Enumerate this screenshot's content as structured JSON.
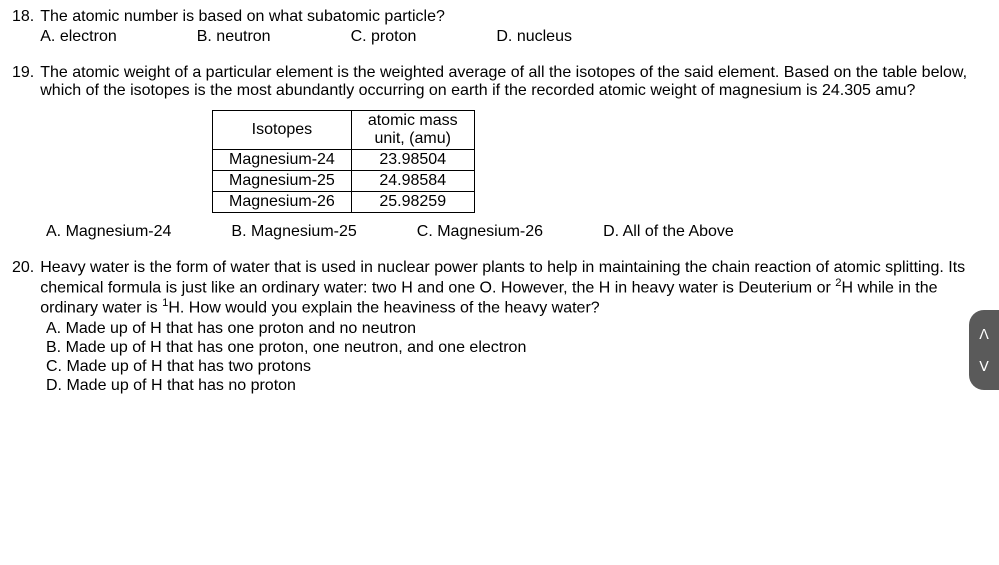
{
  "q18": {
    "number": "18.",
    "text": "The atomic number is based on what subatomic particle?",
    "opts": {
      "a": "A. electron",
      "b": "B.  neutron",
      "c": "C.  proton",
      "d": "D.  nucleus"
    }
  },
  "q19": {
    "number": "19.",
    "text": "The atomic weight of a particular element is the weighted average of all the isotopes of the said element. Based on the table below, which of the isotopes is the most abundantly occurring on earth if the recorded atomic weight of magnesium is 24.305 amu?",
    "table": {
      "h1": "Isotopes",
      "h2a": "atomic mass",
      "h2b": "unit, (amu)",
      "r1c1": "Magnesium-24",
      "r1c2": "23.98504",
      "r2c1": "Magnesium-25",
      "r2c2": "24.98584",
      "r3c1": "Magnesium-26",
      "r3c2": "25.98259"
    },
    "opts": {
      "a": "A. Magnesium-24",
      "b": "B.  Magnesium-25",
      "c": "C.  Magnesium-26",
      "d": "D.  All of the Above"
    }
  },
  "q20": {
    "number": "20.",
    "text_p1": "Heavy water is the form of water that is used in nuclear power plants to help in maintaining the chain reaction of atomic splitting. Its chemical formula is just like an ordinary water: two H and one O.  However, the H in heavy water is Deuterium or ",
    "sup2": "2",
    "text_p2": "H while in the ordinary water is ",
    "sup1": "1",
    "text_p3": "H.  How would you explain the heaviness of the heavy water?",
    "opts": {
      "a": "A.  Made up of H that has one proton and no neutron",
      "b": "B.  Made up of H that has one proton, one neutron, and one electron",
      "c": "C.  Made up of H that has two protons",
      "d": "D.  Made up of H that has no proton"
    }
  },
  "nav": {
    "up": "ᐱ",
    "down": "ᐯ"
  },
  "colors": {
    "text": "#000000",
    "bg": "#ffffff",
    "pill": "#5a5a5a",
    "pill_fg": "#ffffff"
  }
}
